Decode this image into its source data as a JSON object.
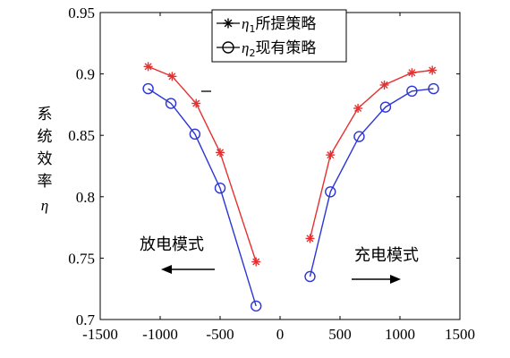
{
  "chart_data": {
    "type": "line",
    "xlim": [
      -1500,
      1500
    ],
    "ylim": [
      0.7,
      0.95
    ],
    "xticks": [
      -1500,
      -1000,
      -500,
      0,
      500,
      1000,
      1500
    ],
    "yticks": [
      0.7,
      0.75,
      0.8,
      0.85,
      0.9,
      0.95
    ],
    "xtick_labels": [
      "-1500",
      "-1000",
      "-500",
      "0",
      "500",
      "1000",
      "1500"
    ],
    "ytick_labels": [
      "0.7",
      "0.75",
      "0.8",
      "0.85",
      "0.9",
      "0.95"
    ],
    "ylabel": {
      "chars": [
        "系",
        "统",
        "效",
        "率"
      ],
      "symbol": "η"
    },
    "grid": false,
    "legend_position": "top-center",
    "series": [
      {
        "name": "η1所提策略",
        "legend": {
          "symbol": "η",
          "sub": "1",
          "text": "所提策略"
        },
        "color": "#e53030",
        "marker": "asterisk",
        "segments": [
          [
            [
              -1100,
              0.906
            ],
            [
              -900,
              0.898
            ],
            [
              -700,
              0.876
            ],
            [
              -500,
              0.836
            ],
            [
              -200,
              0.747
            ]
          ],
          [
            [
              250,
              0.766
            ],
            [
              420,
              0.834
            ],
            [
              650,
              0.872
            ],
            [
              870,
              0.891
            ],
            [
              1100,
              0.901
            ],
            [
              1270,
              0.903
            ]
          ]
        ]
      },
      {
        "name": "η2现有策略",
        "legend": {
          "symbol": "η",
          "sub": "2",
          "text": "现有策略"
        },
        "color": "#2b35d6",
        "marker": "circle",
        "segments": [
          [
            [
              -1100,
              0.888
            ],
            [
              -910,
              0.876
            ],
            [
              -710,
              0.851
            ],
            [
              -500,
              0.807
            ],
            [
              -200,
              0.711
            ]
          ],
          [
            [
              250,
              0.735
            ],
            [
              420,
              0.804
            ],
            [
              660,
              0.849
            ],
            [
              880,
              0.873
            ],
            [
              1100,
              0.886
            ],
            [
              1280,
              0.888
            ]
          ]
        ]
      }
    ],
    "annotations": [
      {
        "text": "放电模式",
        "arrow": "left"
      },
      {
        "text": "充电模式",
        "arrow": "right"
      }
    ]
  }
}
